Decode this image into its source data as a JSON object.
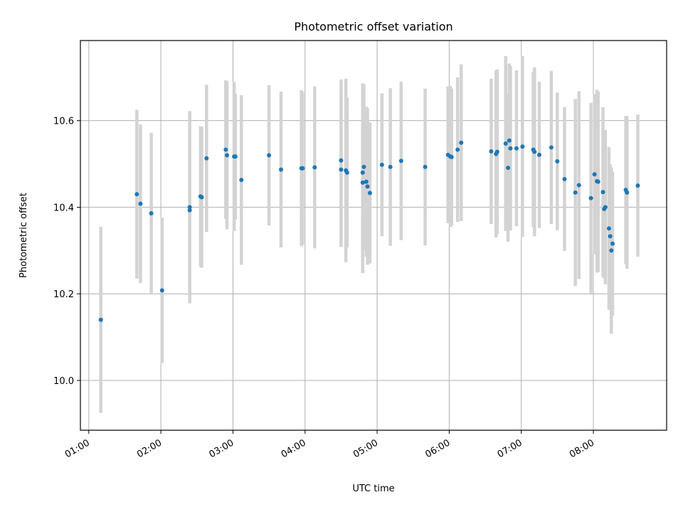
{
  "chart_data": {
    "type": "scatter",
    "title": "Photometric offset variation",
    "xlabel": "UTC time",
    "ylabel": "Photometric offset",
    "grid": true,
    "xlim": [
      "00:53",
      "09:01"
    ],
    "ylim": [
      9.885,
      10.785
    ],
    "x_ticks": [
      "01:00",
      "02:00",
      "03:00",
      "04:00",
      "05:00",
      "06:00",
      "07:00",
      "08:00"
    ],
    "y_ticks": [
      "10.0",
      "10.2",
      "10.4",
      "10.6"
    ],
    "colors": {
      "points": "#1f77b4",
      "errorbars": "#d3d3d3",
      "grid": "#b0b0b0"
    },
    "series": [
      {
        "x": [
          "01:10",
          "01:40",
          "01:43",
          "01:52",
          "02:01",
          "02:24",
          "02:24",
          "02:33",
          "02:34",
          "02:38",
          "02:54",
          "02:55",
          "03:01",
          "03:02",
          "03:07",
          "03:30",
          "03:40",
          "03:57",
          "03:58",
          "04:08",
          "04:30",
          "04:30",
          "04:34",
          "04:35",
          "04:48",
          "04:48",
          "04:49",
          "04:51",
          "04:52",
          "04:54",
          "05:04",
          "05:11",
          "05:20",
          "05:40",
          "05:59",
          "06:01",
          "06:02",
          "06:07",
          "06:10",
          "06:35",
          "06:39",
          "06:40",
          "06:47",
          "06:49",
          "06:50",
          "06:51",
          "06:56",
          "07:01",
          "07:10",
          "07:11",
          "07:15",
          "07:25",
          "07:30",
          "07:36",
          "07:45",
          "07:48",
          "07:58",
          "08:01",
          "08:03",
          "08:04",
          "08:08",
          "08:09",
          "08:10",
          "08:13",
          "08:14",
          "08:15",
          "08:16",
          "08:27",
          "08:28",
          "08:37"
        ],
        "y": [
          10.14,
          10.43,
          10.408,
          10.386,
          10.208,
          10.4,
          10.393,
          10.425,
          10.423,
          10.513,
          10.533,
          10.52,
          10.517,
          10.517,
          10.463,
          10.52,
          10.487,
          10.49,
          10.49,
          10.492,
          10.508,
          10.487,
          10.485,
          10.48,
          10.457,
          10.48,
          10.493,
          10.459,
          10.448,
          10.433,
          10.498,
          10.493,
          10.507,
          10.493,
          10.521,
          10.517,
          10.516,
          10.533,
          10.549,
          10.529,
          10.523,
          10.528,
          10.547,
          10.491,
          10.554,
          10.536,
          10.536,
          10.54,
          10.533,
          10.528,
          10.521,
          10.538,
          10.506,
          10.465,
          10.434,
          10.451,
          10.421,
          10.476,
          10.46,
          10.459,
          10.435,
          10.396,
          10.4,
          10.351,
          10.333,
          10.3,
          10.316,
          10.44,
          10.434,
          10.45
        ],
        "yerr": [
          0.215,
          0.195,
          0.183,
          0.186,
          0.168,
          0.222,
          0.19,
          0.162,
          0.163,
          0.17,
          0.16,
          0.171,
          0.172,
          0.145,
          0.196,
          0.162,
          0.18,
          0.18,
          0.177,
          0.187,
          0.187,
          0.179,
          0.212,
          0.173,
          0.209,
          0.206,
          0.191,
          0.173,
          0.181,
          0.163,
          0.165,
          0.182,
          0.183,
          0.181,
          0.158,
          0.163,
          0.158,
          0.167,
          0.181,
          0.168,
          0.193,
          0.19,
          0.202,
          0.171,
          0.178,
          0.19,
          0.18,
          0.209,
          0.179,
          0.195,
          0.169,
          0.177,
          0.159,
          0.166,
          0.216,
          0.217,
          0.22,
          0.185,
          0.211,
          0.208,
          0.196,
          0.16,
          0.178,
          0.188,
          0.166,
          0.192,
          0.166,
          0.171,
          0.176,
          0.164
        ]
      }
    ]
  }
}
